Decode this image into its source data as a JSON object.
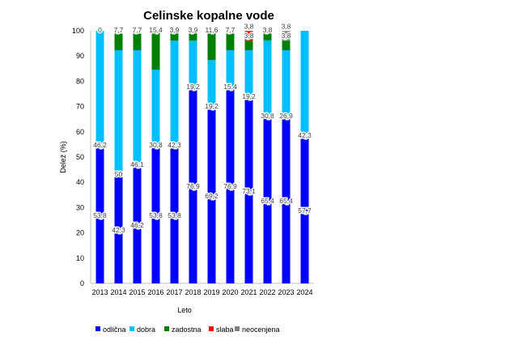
{
  "chart_data": {
    "type": "bar",
    "stacked": true,
    "title": "Celinske kopalne vode",
    "xlabel": "Leto",
    "ylabel": "Delež (%)",
    "ylim": [
      0,
      100
    ],
    "yticks": [
      0,
      10,
      20,
      30,
      40,
      50,
      60,
      70,
      80,
      90,
      100
    ],
    "grid": false,
    "legend_position": "bottom",
    "categories": [
      "2013",
      "2014",
      "2015",
      "2016",
      "2017",
      "2018",
      "2019",
      "2020",
      "2021",
      "2022",
      "2023",
      "2024"
    ],
    "series": [
      {
        "name": "odlična",
        "color": "#0000ff",
        "values": [
          53.8,
          42.3,
          46.2,
          53.8,
          53.8,
          76.9,
          69.2,
          76.9,
          73.1,
          65.4,
          65.4,
          57.7
        ],
        "labels": [
          "53,8",
          "42,3",
          "46,2",
          "53,8",
          "53,8",
          "76,9",
          "69,2",
          "76,9",
          "73,1",
          "65,4",
          "65,4",
          "57,7"
        ]
      },
      {
        "name": "dobra",
        "color": "#00bfff",
        "values": [
          46.2,
          50,
          46.1,
          30.8,
          42.3,
          19.2,
          19.2,
          15.4,
          19.2,
          30.8,
          26.9,
          42.3
        ],
        "labels": [
          "46,2",
          "50",
          "46,1",
          "30,8",
          "42,3",
          "19,2",
          "19,2",
          "15,4",
          "19,2",
          "30,8",
          "26,9",
          "42,3"
        ]
      },
      {
        "name": "zadostna",
        "color": "#008000",
        "values": [
          0,
          7.7,
          7.7,
          15.4,
          3.9,
          3.9,
          11.6,
          7.7,
          3.8,
          3.8,
          3.8,
          0
        ],
        "labels": [
          "0",
          "7,7",
          "7,7",
          "15,4",
          "3,9",
          "3,9",
          "11,6",
          "7,7",
          "3,8",
          "3,8",
          "3,8",
          ""
        ]
      },
      {
        "name": "slaba",
        "color": "#ff0000",
        "values": [
          0,
          0,
          0,
          0,
          0,
          0,
          0,
          0,
          3.8,
          0,
          0,
          0
        ],
        "labels": [
          "",
          "",
          "",
          "",
          "",
          "",
          "",
          "",
          "3,8",
          "",
          "",
          ""
        ]
      },
      {
        "name": "neocenjena",
        "color": "#808080",
        "values": [
          0,
          0,
          0,
          0,
          0,
          0,
          0,
          0,
          0,
          0,
          3.8,
          0
        ],
        "labels": [
          "",
          "",
          "",
          "",
          "",
          "",
          "",
          "",
          "",
          "",
          "3,8",
          ""
        ]
      }
    ]
  }
}
